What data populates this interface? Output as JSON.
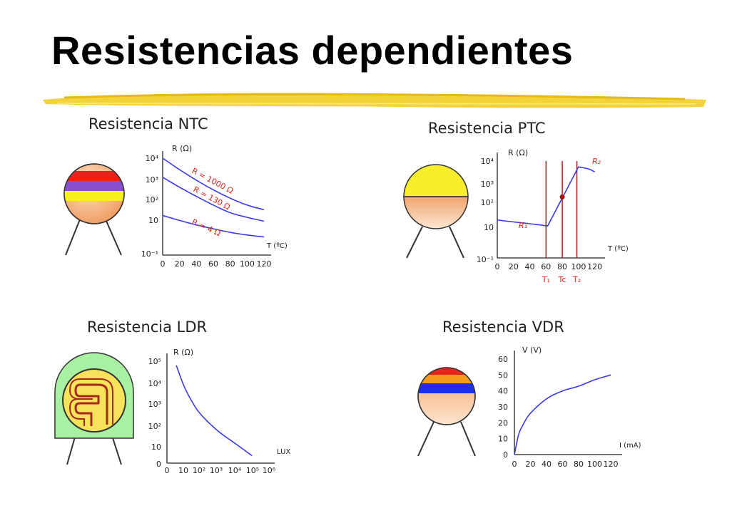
{
  "title": "Resistencias dependientes",
  "colors": {
    "curve": "#3a3ae8",
    "annotation": "#e0231a",
    "marker": "#a81010"
  },
  "panels": [
    {
      "id": "ntc",
      "title": "Resistencia NTC"
    },
    {
      "id": "ptc",
      "title": "Resistencia PTC"
    },
    {
      "id": "ldr",
      "title": "Resistencia LDR"
    },
    {
      "id": "vdr",
      "title": "Resistencia VDR"
    }
  ],
  "chart_data": [
    {
      "type": "line",
      "title": "",
      "ylabel": "R (Ω)",
      "xlabel": "T (ºC)",
      "yscale": "log",
      "xlim": [
        0,
        120
      ],
      "ylim": [
        0.1,
        10000
      ],
      "x_ticks": [
        "0",
        "20",
        "40",
        "60",
        "80",
        "100",
        "120"
      ],
      "y_ticks": [
        "10⁴",
        "10³",
        "10²",
        "10",
        "10⁻¹"
      ],
      "series": [
        {
          "name": "R = 1000 Ω",
          "x": [
            0,
            20,
            40,
            60,
            80,
            100,
            120
          ],
          "y": [
            10000,
            2500,
            700,
            220,
            80,
            35,
            20
          ]
        },
        {
          "name": "R = 130 Ω",
          "x": [
            0,
            20,
            40,
            60,
            80,
            100,
            120
          ],
          "y": [
            1000,
            300,
            100,
            35,
            14,
            8,
            5
          ]
        },
        {
          "name": "R = 4 Ω",
          "x": [
            0,
            20,
            40,
            60,
            80,
            100,
            120
          ],
          "y": [
            10,
            5.5,
            3.2,
            2,
            1.3,
            0.95,
            0.75
          ]
        }
      ]
    },
    {
      "type": "line",
      "title": "",
      "ylabel": "R (Ω)",
      "xlabel": "T (ºC)",
      "yscale": "log",
      "xlim": [
        0,
        130
      ],
      "ylim": [
        0.1,
        10000
      ],
      "x_ticks": [
        "0",
        "20",
        "40",
        "60",
        "80",
        "100",
        "120"
      ],
      "y_ticks": [
        "10⁴",
        "10³",
        "10²",
        "10",
        "10⁻¹"
      ],
      "series": [
        {
          "name": "",
          "x": [
            0,
            20,
            40,
            62,
            100,
            112,
            120
          ],
          "y": [
            10,
            8,
            6.5,
            5,
            5000,
            4000,
            2800
          ]
        }
      ],
      "labels": {
        "low": "R₁",
        "high": "R₂"
      },
      "markers": [
        {
          "label": "T₁",
          "x": 60
        },
        {
          "label": "Tc",
          "x": 80
        },
        {
          "label": "T₂",
          "x": 98
        }
      ],
      "point": {
        "x": 80,
        "y": 150
      }
    },
    {
      "type": "line",
      "title": "",
      "ylabel": "R (Ω)",
      "xlabel": "LUX",
      "x_ticks": [
        "0",
        "10",
        "10²",
        "10³",
        "10⁴",
        "10⁵",
        "10⁶"
      ],
      "y_ticks": [
        "10⁵",
        "10⁴",
        "10³",
        "10²",
        "10",
        "0"
      ],
      "series": [
        {
          "name": "",
          "x": [
            0.55,
            1,
            1.5,
            2,
            3,
            4,
            5
          ],
          "y": [
            4.8,
            3.8,
            3.0,
            2.4,
            1.6,
            1.0,
            0.4
          ]
        }
      ]
    },
    {
      "type": "line",
      "title": "",
      "ylabel": "V (V)",
      "xlabel": "I (mA)",
      "xlim": [
        0,
        120
      ],
      "ylim": [
        0,
        60
      ],
      "x_ticks": [
        "0",
        "20",
        "40",
        "60",
        "80",
        "100",
        "120"
      ],
      "y_ticks": [
        "60",
        "50",
        "40",
        "30",
        "20",
        "10",
        "0"
      ],
      "series": [
        {
          "name": "",
          "x": [
            0,
            5,
            10,
            20,
            40,
            60,
            80,
            100,
            120
          ],
          "y": [
            0,
            12,
            18,
            26,
            35,
            40,
            43,
            47,
            50
          ]
        }
      ]
    }
  ]
}
